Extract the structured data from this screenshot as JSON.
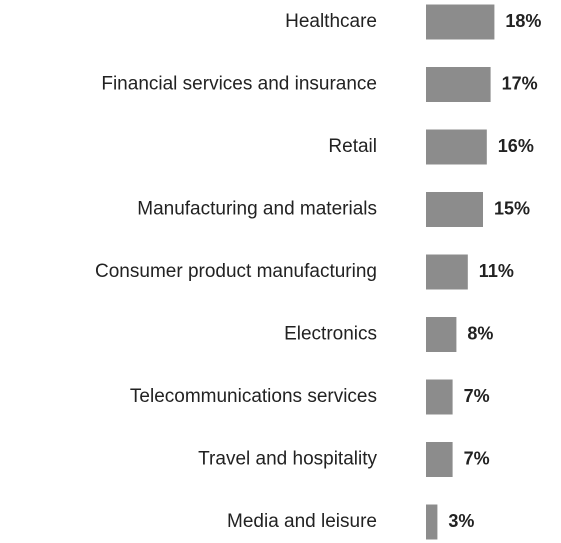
{
  "chart_data": {
    "type": "bar",
    "orientation": "horizontal",
    "categories": [
      "Healthcare",
      "Financial services and insurance",
      "Retail",
      "Manufacturing and materials",
      "Consumer product manufacturing",
      "Electronics",
      "Telecommunications services",
      "Travel and hospitality",
      "Media and leisure"
    ],
    "values": [
      18,
      17,
      16,
      15,
      11,
      8,
      7,
      7,
      3
    ],
    "value_labels": [
      "18%",
      "17%",
      "16%",
      "15%",
      "11%",
      "8%",
      "7%",
      "7%",
      "3%"
    ],
    "title": "",
    "xlabel": "",
    "ylabel": "",
    "xlim": [
      0,
      18
    ],
    "grid": false,
    "legend": "none",
    "bar_color": "#8c8c8c",
    "text_color": "#222222"
  }
}
